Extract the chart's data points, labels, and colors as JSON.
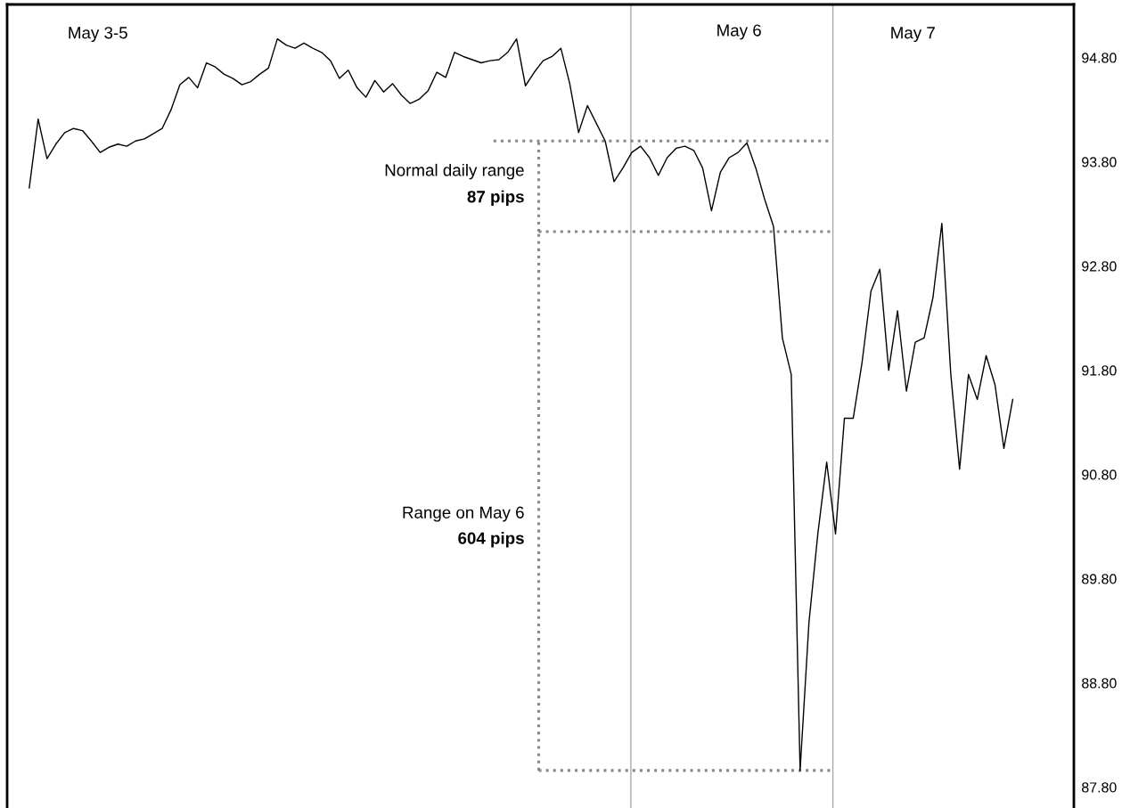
{
  "chart_data": {
    "type": "line",
    "categories": [
      null,
      null,
      null,
      null,
      null,
      null,
      null,
      null,
      null,
      null,
      null,
      null,
      null,
      null,
      null,
      null,
      null,
      null,
      null,
      null,
      null,
      null,
      null,
      null,
      null,
      null,
      null,
      null,
      null,
      null,
      null,
      null,
      null,
      null,
      null,
      null,
      null,
      null,
      null,
      null,
      null,
      null,
      null,
      null,
      null,
      null,
      null,
      null,
      null,
      null,
      null,
      null,
      null,
      null,
      null,
      null,
      null,
      null,
      null,
      null,
      null,
      null,
      null,
      null,
      null,
      null,
      null,
      null,
      null,
      null,
      null,
      null,
      null,
      null,
      null,
      null,
      null,
      null,
      null,
      null,
      null,
      null,
      null,
      null,
      null,
      null,
      null,
      null,
      null,
      null,
      null,
      null,
      null,
      null,
      null,
      null,
      null,
      null,
      null,
      null,
      null,
      null,
      null,
      null,
      null,
      null,
      null,
      null,
      null,
      null,
      null,
      null
    ],
    "series": [
      {
        "color": "#000000",
        "values": [
          93.55,
          94.21,
          93.83,
          93.97,
          94.08,
          94.12,
          94.1,
          94.0,
          93.89,
          93.94,
          93.97,
          93.95,
          94.0,
          94.02,
          94.07,
          94.12,
          94.3,
          94.54,
          94.61,
          94.51,
          94.75,
          94.71,
          94.64,
          94.6,
          94.54,
          94.57,
          94.64,
          94.7,
          94.98,
          94.92,
          94.89,
          94.94,
          94.89,
          94.85,
          94.77,
          94.6,
          94.68,
          94.51,
          94.42,
          94.58,
          94.47,
          94.55,
          94.44,
          94.36,
          94.4,
          94.48,
          94.66,
          94.61,
          94.85,
          94.81,
          94.78,
          94.75,
          94.77,
          94.78,
          94.85,
          94.98,
          94.53,
          94.66,
          94.77,
          94.81,
          94.89,
          94.55,
          94.08,
          94.34,
          94.17,
          94.0,
          93.61,
          93.74,
          93.89,
          93.95,
          93.84,
          93.67,
          93.84,
          93.93,
          93.95,
          93.91,
          93.74,
          93.33,
          93.7,
          93.84,
          93.89,
          93.98,
          93.74,
          93.44,
          93.18,
          92.11,
          91.76,
          87.96,
          89.38,
          90.23,
          90.92,
          90.23,
          91.34,
          91.34,
          91.88,
          92.56,
          92.77,
          91.8,
          92.37,
          91.6,
          92.07,
          92.11,
          92.5,
          93.21,
          91.77,
          90.85,
          91.76,
          91.52,
          91.94,
          91.66,
          91.05,
          91.52
        ]
      }
    ],
    "ylim": [
      87.6,
      95.31
    ],
    "yticks": [
      {
        "value": 94.8,
        "label": "94.80"
      },
      {
        "value": 93.8,
        "label": "93.80"
      },
      {
        "value": 92.8,
        "label": "92.80"
      },
      {
        "value": 91.8,
        "label": "91.80"
      },
      {
        "value": 90.8,
        "label": "90.80"
      },
      {
        "value": 89.8,
        "label": "89.80"
      },
      {
        "value": 88.8,
        "label": "88.80"
      },
      {
        "value": 87.8,
        "label": "87.80"
      }
    ],
    "tick_labels": "y",
    "grid": false,
    "legend": false,
    "marker": "none",
    "line_style": "solid",
    "ref_lines": [
      {
        "axis": "y",
        "value": 94.0,
        "color": "#888888",
        "line_style": "dotted"
      },
      {
        "axis": "y",
        "value": 93.13,
        "color": "#888888",
        "line_style": "dotted"
      },
      {
        "axis": "y",
        "value": 87.96,
        "color": "#888888",
        "line_style": "dotted"
      }
    ],
    "annotations": [
      "Normal daily range",
      "87 pips",
      "Range on May 6",
      "604 pips",
      "May 3-5",
      "May 6",
      "May 7"
    ]
  }
}
